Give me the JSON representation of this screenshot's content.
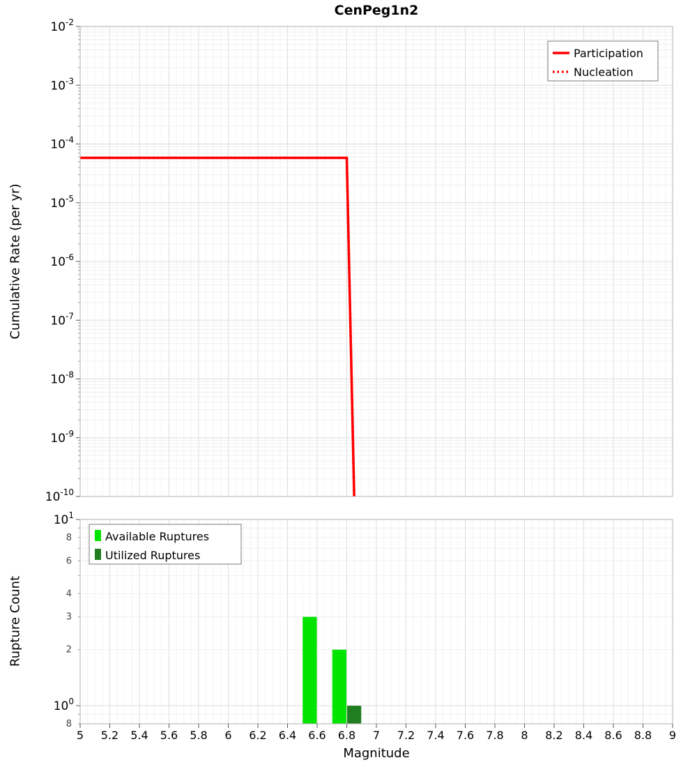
{
  "title": "CenPeg1n2",
  "xlabel": "Magnitude",
  "chart_data": [
    {
      "type": "line",
      "panel": "top",
      "ylabel": "Cumulative Rate (per yr)",
      "xlim": [
        5,
        9
      ],
      "ylim": [
        1e-10,
        0.01
      ],
      "yscale": "log",
      "grid": true,
      "legend_position": "top-right",
      "ytick_exponents": [
        -2,
        -3,
        -4,
        -5,
        -6,
        -7,
        -8,
        -9,
        -10
      ],
      "series": [
        {
          "name": "Participation",
          "color": "#ff0000",
          "line_style": "solid",
          "line_width": 3.5,
          "points": [
            [
              5,
              5.8e-05
            ],
            [
              6.8,
              5.8e-05
            ],
            [
              6.85,
              1e-10
            ]
          ]
        },
        {
          "name": "Nucleation",
          "color": "#ff0000",
          "line_style": "dotted",
          "line_width": 3.5,
          "points": [
            [
              5,
              5.8e-05
            ],
            [
              6.8,
              5.8e-05
            ],
            [
              6.85,
              1e-10
            ]
          ]
        }
      ]
    },
    {
      "type": "bar",
      "panel": "bottom",
      "ylabel": "Rupture Count",
      "xlim": [
        5,
        9
      ],
      "ylim": [
        0.8,
        10
      ],
      "yscale": "log",
      "grid": true,
      "legend_position": "top-left",
      "bar_width_mag": 0.095,
      "yticks": [
        {
          "label": "10",
          "sup": "1",
          "value": 10
        },
        {
          "label": "8",
          "value": 8
        },
        {
          "label": "6",
          "value": 6
        },
        {
          "label": "4",
          "value": 4
        },
        {
          "label": "3",
          "value": 3
        },
        {
          "label": "2",
          "value": 2
        },
        {
          "label": "10",
          "sup": "0",
          "value": 1
        },
        {
          "label": "8",
          "value": 0.8
        }
      ],
      "series": [
        {
          "name": "Available Ruptures",
          "color": "#00e400",
          "bars": [
            {
              "magnitude": 6.55,
              "count": 3
            },
            {
              "magnitude": 6.75,
              "count": 2
            }
          ]
        },
        {
          "name": "Utilized Ruptures",
          "color": "#207d20",
          "bars": [
            {
              "magnitude": 6.85,
              "count": 1
            }
          ]
        }
      ]
    }
  ],
  "xticks": {
    "values": [
      5,
      5.2,
      5.4,
      5.6,
      5.8,
      6,
      6.2,
      6.4,
      6.6,
      6.8,
      7,
      7.2,
      7.4,
      7.6,
      7.8,
      8,
      8.2,
      8.4,
      8.6,
      8.8,
      9
    ],
    "labels": [
      "5",
      "5.2",
      "5.4",
      "5.6",
      "5.8",
      "6",
      "6.2",
      "6.4",
      "6.6",
      "6.8",
      "7",
      "7.2",
      "7.4",
      "7.6",
      "7.8",
      "8",
      "8.2",
      "8.4",
      "8.6",
      "8.8",
      "9"
    ]
  }
}
